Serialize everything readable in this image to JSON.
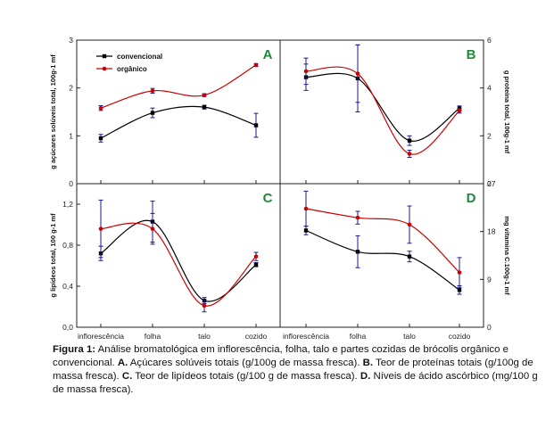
{
  "caption": {
    "lead": "Figura 1:",
    "intro": "Análise bromatológica em inflorescência, folha, talo e partes cozidas de brócolis orgânico e convencional.",
    "parts": [
      {
        "letter": "A.",
        "text": "Açúcares solúveis totais (g/100g de massa fresca)."
      },
      {
        "letter": "B.",
        "text": "Teor de proteínas totais (g/100g de massa fresca)."
      },
      {
        "letter": "C.",
        "text": "Teor de lipídeos totais (g/100 g de massa fresca)."
      },
      {
        "letter": "D.",
        "text": "Níveis de ácido ascórbico (mg/100 g de massa fresca)."
      }
    ]
  },
  "legend": {
    "conventional": "convencional",
    "organic": "orgânico"
  },
  "colors": {
    "conventional": "#000000",
    "organic": "#cc0000",
    "errorbar": "#1a1a8c",
    "panel_label": "#1f8a3c"
  },
  "chart_data": [
    {
      "panel": "A",
      "type": "line",
      "axis_side": "left",
      "categories": [
        "inflorescência",
        "folha",
        "talo",
        "cozido"
      ],
      "ylabel": "g açúcares solúveis total, 100g-1 mf",
      "ylim": [
        0,
        3
      ],
      "yticks": [
        "0",
        "1",
        "2",
        "3"
      ],
      "series": [
        {
          "name": "convencional",
          "values": [
            0.95,
            1.48,
            1.6,
            1.22
          ],
          "errors": [
            0.08,
            0.1,
            0.04,
            0.25
          ]
        },
        {
          "name": "orgânico",
          "values": [
            1.58,
            1.94,
            1.85,
            2.48
          ],
          "errors": [
            0.05,
            0.05,
            0.03,
            0.03
          ]
        }
      ]
    },
    {
      "panel": "B",
      "type": "line",
      "axis_side": "right",
      "categories": [
        "inflorescência",
        "folha",
        "talo",
        "cozido"
      ],
      "ylabel": "g proteína total, 100g-1 mf",
      "ylim": [
        0,
        6
      ],
      "yticks": [
        "0",
        "2",
        "4",
        "6"
      ],
      "series": [
        {
          "name": "convencional",
          "values": [
            4.45,
            4.4,
            1.8,
            3.15
          ],
          "errors": [
            0.55,
            1.4,
            0.2,
            0.1
          ]
        },
        {
          "name": "orgânico",
          "values": [
            4.7,
            4.6,
            1.25,
            3.05
          ],
          "errors": [
            0.55,
            1.2,
            0.15,
            0.1
          ]
        }
      ]
    },
    {
      "panel": "C",
      "type": "line",
      "axis_side": "left",
      "categories": [
        "inflorescência",
        "folha",
        "talo",
        "cozido"
      ],
      "ylabel": "g lipídeos total, 100 g-1 mf",
      "ylim": [
        0,
        1.4
      ],
      "yticks": [
        "0,0",
        "0,4",
        "0,8",
        "1,2"
      ],
      "series": [
        {
          "name": "convencional",
          "values": [
            0.72,
            1.03,
            0.26,
            0.61
          ],
          "errors": [
            0.07,
            0.2,
            0.03,
            0.02
          ]
        },
        {
          "name": "orgânico",
          "values": [
            0.96,
            0.96,
            0.21,
            0.69
          ],
          "errors": [
            0.28,
            0.15,
            0.06,
            0.04
          ]
        }
      ]
    },
    {
      "panel": "D",
      "type": "line",
      "axis_side": "right",
      "categories": [
        "inflorescência",
        "folha",
        "talo",
        "cozido"
      ],
      "ylabel": "mg vitamina C.100g-1 mf",
      "ylim": [
        0,
        27
      ],
      "yticks": [
        "0",
        "9",
        "18",
        "27"
      ],
      "series": [
        {
          "name": "convencional",
          "values": [
            18.2,
            14.2,
            13.3,
            7.0
          ],
          "errors": [
            0.8,
            3.0,
            1.0,
            0.8
          ]
        },
        {
          "name": "orgânico",
          "values": [
            22.3,
            20.6,
            19.3,
            10.3
          ],
          "errors": [
            3.3,
            1.2,
            3.5,
            2.8
          ]
        }
      ]
    }
  ]
}
